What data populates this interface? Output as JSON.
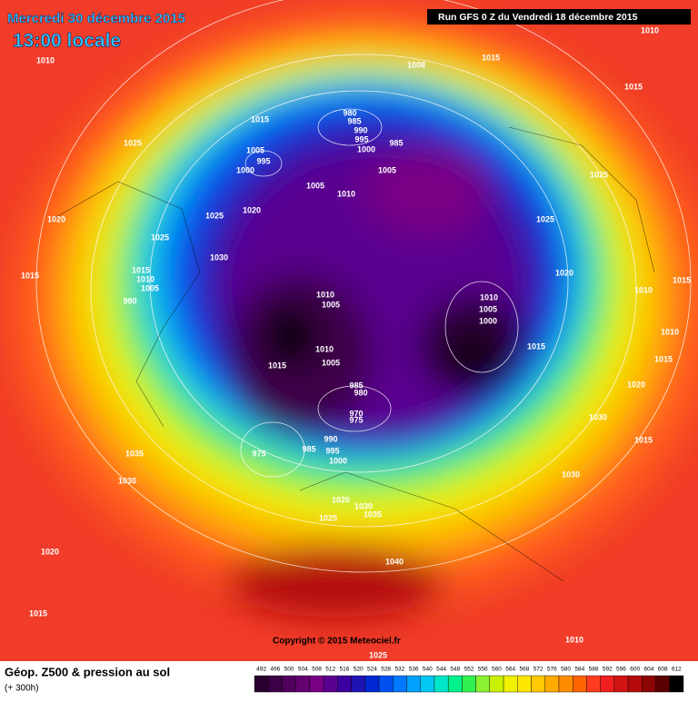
{
  "header": {
    "date": "Mercredi 30 décembre 2015",
    "time": "13:00 locale",
    "run": "Run GFS 0 Z du Vendredi 18 décembre 2015"
  },
  "copyright": "Copyright © 2015 Meteociel.fr",
  "footer": {
    "title": "Géop. Z500 & pression au sol",
    "lead": "(+ 300h)"
  },
  "isobar_labels": [
    1010,
    1008,
    1015,
    1010,
    1015,
    1015,
    980,
    985,
    990,
    995,
    1000,
    985,
    1025,
    1005,
    995,
    1000,
    1005,
    1010,
    1005,
    1025,
    1020,
    1025,
    1025,
    1020,
    1025,
    1030,
    1015,
    1015,
    1010,
    1005,
    990,
    1020,
    1010,
    1015,
    1010,
    1005,
    1010,
    1005,
    1000,
    1010,
    1015,
    1010,
    1015,
    1005,
    1015,
    1020,
    985,
    980,
    970,
    975,
    1030,
    990,
    1015,
    1035,
    995,
    1000,
    985,
    975,
    1030,
    1030,
    1020,
    1030,
    1035,
    1025,
    1020,
    1040,
    1015,
    1010,
    1025
  ],
  "colorbar": {
    "labels": [
      492,
      496,
      500,
      504,
      508,
      512,
      516,
      520,
      524,
      528,
      532,
      536,
      540,
      544,
      548,
      552,
      556,
      560,
      564,
      568,
      572,
      576,
      580,
      584,
      588,
      592,
      596,
      600,
      604,
      608,
      612
    ],
    "colors": [
      "#2a0030",
      "#3c0046",
      "#50005c",
      "#640070",
      "#780084",
      "#5a0090",
      "#3c00a0",
      "#1e14b4",
      "#0028d2",
      "#0050f0",
      "#0078ff",
      "#00a0ff",
      "#00c8f0",
      "#00e6c8",
      "#00f08c",
      "#32f050",
      "#8cf032",
      "#c8f000",
      "#f0f000",
      "#ffe600",
      "#ffc800",
      "#ffaa00",
      "#ff8c00",
      "#ff6400",
      "#ff3c1e",
      "#f01e1e",
      "#d21414",
      "#b40a0a",
      "#8c0505",
      "#5a0000",
      "#000000"
    ]
  }
}
